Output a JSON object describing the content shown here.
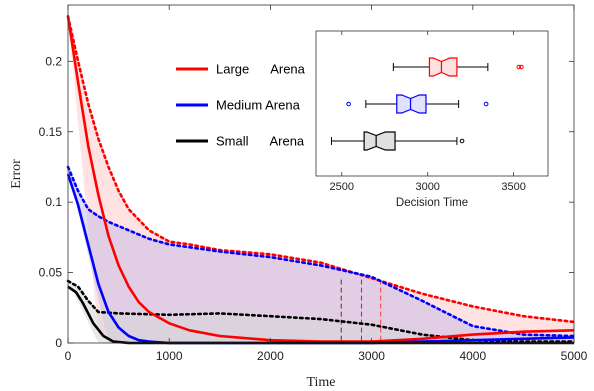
{
  "chart_data": [
    {
      "type": "line",
      "title": "",
      "xlabel": "Time",
      "ylabel": "Error",
      "xlim": [
        0,
        5000
      ],
      "ylim": [
        0,
        0.24
      ],
      "xticks": [
        0,
        1000,
        2000,
        3000,
        4000,
        5000
      ],
      "xtick_labels": [
        "0",
        "1000",
        "2000",
        "3000",
        "4000",
        "5000"
      ],
      "yticks": [
        0,
        0.05,
        0.1,
        0.15,
        0.2
      ],
      "ytick_labels": [
        "0",
        "0.05",
        "0.1",
        "0.15",
        "0.2"
      ],
      "grid": false,
      "legend_position": "top-center",
      "series": [
        {
          "name": "Large      Arena",
          "color": "#ff0000",
          "band_color": "#ffcccc",
          "mean": [
            [
              0,
              0.232
            ],
            [
              100,
              0.185
            ],
            [
              200,
              0.14
            ],
            [
              300,
              0.105
            ],
            [
              400,
              0.076
            ],
            [
              500,
              0.055
            ],
            [
              600,
              0.04
            ],
            [
              700,
              0.029
            ],
            [
              800,
              0.022
            ],
            [
              1000,
              0.014
            ],
            [
              1200,
              0.009
            ],
            [
              1500,
              0.005
            ],
            [
              2000,
              0.002
            ],
            [
              2500,
              0.001
            ],
            [
              3000,
              0.001
            ],
            [
              3500,
              0.003
            ],
            [
              4000,
              0.006
            ],
            [
              4500,
              0.008
            ],
            [
              5000,
              0.009
            ]
          ],
          "upper": [
            [
              0,
              0.232
            ],
            [
              100,
              0.2
            ],
            [
              200,
              0.17
            ],
            [
              300,
              0.145
            ],
            [
              400,
              0.125
            ],
            [
              500,
              0.108
            ],
            [
              600,
              0.095
            ],
            [
              800,
              0.08
            ],
            [
              1000,
              0.072
            ],
            [
              1200,
              0.07
            ],
            [
              1500,
              0.066
            ],
            [
              2000,
              0.063
            ],
            [
              2500,
              0.057
            ],
            [
              3000,
              0.046
            ],
            [
              3500,
              0.035
            ],
            [
              4000,
              0.026
            ],
            [
              4500,
              0.019
            ],
            [
              5000,
              0.015
            ]
          ],
          "lower": [
            [
              0,
              0.232
            ],
            [
              300,
              0.005
            ],
            [
              600,
              0
            ],
            [
              5000,
              0
            ]
          ],
          "vline_x": 3090
        },
        {
          "name": "Medium Arena",
          "color": "#0000ff",
          "band_color": "#c9bde8",
          "mean": [
            [
              0,
              0.12
            ],
            [
              100,
              0.098
            ],
            [
              200,
              0.07
            ],
            [
              300,
              0.042
            ],
            [
              400,
              0.022
            ],
            [
              500,
              0.011
            ],
            [
              600,
              0.005
            ],
            [
              700,
              0.002
            ],
            [
              800,
              0.001
            ],
            [
              1000,
              0
            ],
            [
              3000,
              0
            ],
            [
              3500,
              0.001
            ],
            [
              4000,
              0.002
            ],
            [
              4500,
              0.003
            ],
            [
              5000,
              0.004
            ]
          ],
          "upper": [
            [
              0,
              0.125
            ],
            [
              100,
              0.108
            ],
            [
              200,
              0.095
            ],
            [
              300,
              0.09
            ],
            [
              400,
              0.086
            ],
            [
              600,
              0.08
            ],
            [
              800,
              0.074
            ],
            [
              1000,
              0.07
            ],
            [
              1500,
              0.065
            ],
            [
              2000,
              0.061
            ],
            [
              2500,
              0.055
            ],
            [
              3000,
              0.047
            ],
            [
              3500,
              0.03
            ],
            [
              4000,
              0.012
            ],
            [
              4500,
              0.006
            ],
            [
              5000,
              0.005
            ]
          ],
          "lower": [
            [
              0,
              0.125
            ],
            [
              400,
              0
            ],
            [
              5000,
              0
            ]
          ],
          "vline_x": 2900
        },
        {
          "name": "Small      Arena",
          "color": "#000000",
          "band_color": "#d6d6d6",
          "mean": [
            [
              0,
              0.04
            ],
            [
              80,
              0.036
            ],
            [
              150,
              0.028
            ],
            [
              250,
              0.014
            ],
            [
              350,
              0.005
            ],
            [
              450,
              0.001
            ],
            [
              600,
              0
            ],
            [
              5000,
              0
            ]
          ],
          "upper": [
            [
              0,
              0.044
            ],
            [
              100,
              0.04
            ],
            [
              200,
              0.03
            ],
            [
              300,
              0.022
            ],
            [
              500,
              0.021
            ],
            [
              1000,
              0.02
            ],
            [
              1500,
              0.021
            ],
            [
              2000,
              0.019
            ],
            [
              2500,
              0.017
            ],
            [
              3000,
              0.013
            ],
            [
              3500,
              0.006
            ],
            [
              4000,
              0.002
            ],
            [
              4500,
              0.001
            ],
            [
              5000,
              0.001
            ]
          ],
          "lower": [
            [
              0,
              0.044
            ],
            [
              300,
              0
            ],
            [
              5000,
              0
            ]
          ],
          "vline_x": 2700
        }
      ]
    },
    {
      "type": "boxplot",
      "title": "",
      "xlabel": "Decision Time",
      "xlim": [
        2350,
        3700
      ],
      "xticks": [
        2500,
        3000,
        3500
      ],
      "xtick_labels": [
        "2500",
        "3000",
        "3500"
      ],
      "orientation": "horizontal",
      "notched": true,
      "boxes": [
        {
          "name": "Large Arena",
          "color": "#ff0000",
          "whisker_low": 2800,
          "q1": 3010,
          "median": 3080,
          "q3": 3170,
          "whisker_high": 3350,
          "outliers": [
            3530,
            3545
          ]
        },
        {
          "name": "Medium Arena",
          "color": "#0000ff",
          "whisker_low": 2640,
          "q1": 2820,
          "median": 2900,
          "q3": 2990,
          "whisker_high": 3180,
          "outliers": [
            2540,
            3340
          ]
        },
        {
          "name": "Small Arena",
          "color": "#000000",
          "whisker_low": 2440,
          "q1": 2630,
          "median": 2700,
          "q3": 2810,
          "whisker_high": 3170,
          "outliers": [
            3200
          ]
        }
      ]
    }
  ]
}
